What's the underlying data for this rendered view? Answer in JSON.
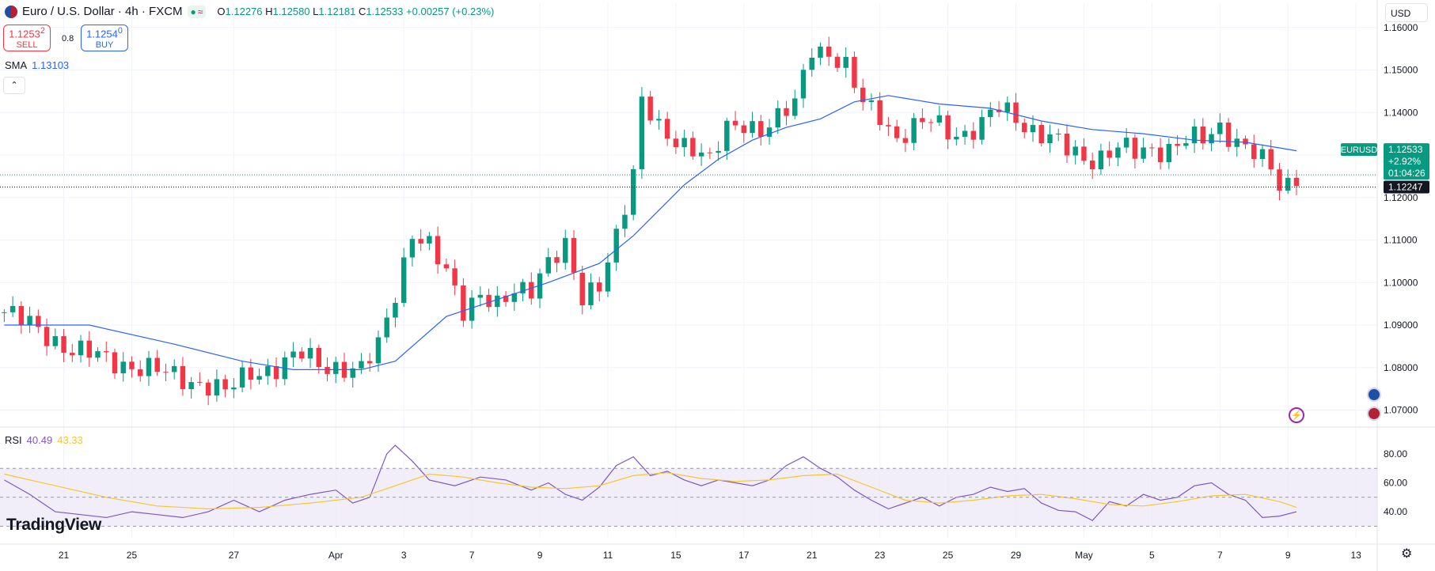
{
  "header": {
    "title": "Euro / U.S. Dollar · 4h · FXCM",
    "open_label": "O",
    "open": "1.12276",
    "high_label": "H",
    "high": "1.12580",
    "low_label": "L",
    "low": "1.12181",
    "close_label": "C",
    "close": "1.12533",
    "change": "+0.00257 (+0.23%)"
  },
  "trade": {
    "sell_price": "1.1253",
    "sell_sup": "2",
    "sell_label": "SELL",
    "buy_price": "1.1254",
    "buy_sup": "0",
    "buy_label": "BUY",
    "spread": "0.8"
  },
  "sma": {
    "label": "SMA",
    "value": "1.13103"
  },
  "rsi": {
    "label": "RSI",
    "value": "40.49",
    "ma_value": "43.33"
  },
  "currency": "USD",
  "logo": "TradingView",
  "price_tag": {
    "symbol": "EURUSD",
    "price": "1.12533",
    "change": "+2.92%",
    "countdown": "01:04:26",
    "crosshair_price": "1.12247"
  },
  "colors": {
    "up": "#089981",
    "down": "#f23645",
    "sma": "#2962ff",
    "rsi": "#7e57c2",
    "rsi_ma": "#f7c62f",
    "band": "#ede7f6"
  },
  "icons": [
    "flag-icon",
    "chevron-up-icon",
    "flash-icon",
    "eu-event-icon",
    "us-event-icon",
    "gear-icon"
  ],
  "chart_data": {
    "type": "candlestick",
    "price_ticks": [
      "1.16000",
      "1.15000",
      "1.14000",
      "1.13000",
      "1.12000",
      "1.11000",
      "1.10000",
      "1.09000",
      "1.08000",
      "1.07000"
    ],
    "ylim": [
      1.066,
      1.162
    ],
    "x_ticks": [
      {
        "label": "21",
        "at": 7
      },
      {
        "label": "25",
        "at": 15
      },
      {
        "label": "27",
        "at": 27
      },
      {
        "label": "Apr",
        "at": 39
      },
      {
        "label": "3",
        "at": 47
      },
      {
        "label": "7",
        "at": 55
      },
      {
        "label": "9",
        "at": 63
      },
      {
        "label": "11",
        "at": 71
      },
      {
        "label": "15",
        "at": 79
      },
      {
        "label": "17",
        "at": 87
      },
      {
        "label": "21",
        "at": 95
      },
      {
        "label": "23",
        "at": 103
      },
      {
        "label": "25",
        "at": 111
      },
      {
        "label": "29",
        "at": 119
      },
      {
        "label": "May",
        "at": 127
      },
      {
        "label": "5",
        "at": 135
      },
      {
        "label": "7",
        "at": 143
      },
      {
        "label": "9",
        "at": 151
      },
      {
        "label": "13",
        "at": 159
      }
    ],
    "n_slots": 162,
    "close_path": [
      [
        0,
        1.093
      ],
      [
        4,
        1.089
      ],
      [
        8,
        1.084
      ],
      [
        12,
        1.082
      ],
      [
        16,
        1.08
      ],
      [
        20,
        1.078
      ],
      [
        24,
        1.076
      ],
      [
        26,
        1.074
      ],
      [
        29,
        1.079
      ],
      [
        32,
        1.08
      ],
      [
        35,
        1.083
      ],
      [
        37,
        1.081
      ],
      [
        40,
        1.08
      ],
      [
        42,
        1.079
      ],
      [
        44,
        1.085
      ],
      [
        46,
        1.098
      ],
      [
        48,
        1.112
      ],
      [
        50,
        1.108
      ],
      [
        52,
        1.102
      ],
      [
        54,
        1.094
      ],
      [
        56,
        1.098
      ],
      [
        58,
        1.094
      ],
      [
        60,
        1.097
      ],
      [
        62,
        1.099
      ],
      [
        64,
        1.106
      ],
      [
        66,
        1.108
      ],
      [
        68,
        1.095
      ],
      [
        70,
        1.1
      ],
      [
        72,
        1.112
      ],
      [
        74,
        1.125
      ],
      [
        75,
        1.142
      ],
      [
        77,
        1.136
      ],
      [
        79,
        1.134
      ],
      [
        81,
        1.132
      ],
      [
        83,
        1.128
      ],
      [
        85,
        1.136
      ],
      [
        87,
        1.138
      ],
      [
        89,
        1.136
      ],
      [
        91,
        1.138
      ],
      [
        93,
        1.142
      ],
      [
        95,
        1.156
      ],
      [
        97,
        1.154
      ],
      [
        99,
        1.15
      ],
      [
        101,
        1.142
      ],
      [
        103,
        1.14
      ],
      [
        105,
        1.134
      ],
      [
        107,
        1.136
      ],
      [
        109,
        1.138
      ],
      [
        111,
        1.136
      ],
      [
        113,
        1.135
      ],
      [
        115,
        1.137
      ],
      [
        117,
        1.141
      ],
      [
        119,
        1.139
      ],
      [
        121,
        1.136
      ],
      [
        123,
        1.134
      ],
      [
        125,
        1.131
      ],
      [
        127,
        1.129
      ],
      [
        129,
        1.13
      ],
      [
        131,
        1.132
      ],
      [
        133,
        1.13
      ],
      [
        135,
        1.131
      ],
      [
        137,
        1.132
      ],
      [
        139,
        1.134
      ],
      [
        141,
        1.133
      ],
      [
        143,
        1.136
      ],
      [
        145,
        1.134
      ],
      [
        147,
        1.131
      ],
      [
        149,
        1.126
      ],
      [
        150,
        1.122
      ],
      [
        151,
        1.1225
      ],
      [
        152,
        1.1253
      ]
    ],
    "sma": [
      [
        0,
        1.09
      ],
      [
        10,
        1.09
      ],
      [
        20,
        1.0855
      ],
      [
        28,
        1.0815
      ],
      [
        34,
        1.0795
      ],
      [
        42,
        1.0795
      ],
      [
        46,
        1.0815
      ],
      [
        52,
        1.092
      ],
      [
        58,
        1.096
      ],
      [
        64,
        1.1
      ],
      [
        70,
        1.1045
      ],
      [
        74,
        1.111
      ],
      [
        80,
        1.123
      ],
      [
        84,
        1.129
      ],
      [
        88,
        1.1335
      ],
      [
        92,
        1.1365
      ],
      [
        96,
        1.1385
      ],
      [
        100,
        1.1425
      ],
      [
        104,
        1.144
      ],
      [
        110,
        1.142
      ],
      [
        116,
        1.141
      ],
      [
        122,
        1.138
      ],
      [
        128,
        1.136
      ],
      [
        134,
        1.135
      ],
      [
        140,
        1.1335
      ],
      [
        146,
        1.133
      ],
      [
        152,
        1.131
      ]
    ],
    "rsi_ylim": [
      22,
      92
    ],
    "rsi_ticks": [
      "80.00",
      "60.00",
      "40.00"
    ],
    "rsi_band": [
      30,
      70
    ],
    "rsi_mid": 50,
    "rsi": [
      [
        0,
        62
      ],
      [
        3,
        52
      ],
      [
        6,
        40
      ],
      [
        9,
        38
      ],
      [
        12,
        36
      ],
      [
        15,
        40
      ],
      [
        18,
        38
      ],
      [
        21,
        36
      ],
      [
        24,
        40
      ],
      [
        27,
        48
      ],
      [
        30,
        40
      ],
      [
        33,
        48
      ],
      [
        36,
        52
      ],
      [
        39,
        55
      ],
      [
        41,
        46
      ],
      [
        43,
        50
      ],
      [
        45,
        80
      ],
      [
        46,
        86
      ],
      [
        48,
        75
      ],
      [
        50,
        62
      ],
      [
        53,
        58
      ],
      [
        56,
        64
      ],
      [
        59,
        62
      ],
      [
        62,
        55
      ],
      [
        64,
        60
      ],
      [
        66,
        52
      ],
      [
        68,
        48
      ],
      [
        70,
        57
      ],
      [
        72,
        72
      ],
      [
        74,
        78
      ],
      [
        76,
        65
      ],
      [
        78,
        68
      ],
      [
        80,
        62
      ],
      [
        82,
        58
      ],
      [
        84,
        62
      ],
      [
        86,
        60
      ],
      [
        88,
        58
      ],
      [
        90,
        62
      ],
      [
        92,
        72
      ],
      [
        94,
        78
      ],
      [
        96,
        70
      ],
      [
        98,
        64
      ],
      [
        100,
        55
      ],
      [
        102,
        48
      ],
      [
        104,
        42
      ],
      [
        106,
        46
      ],
      [
        108,
        50
      ],
      [
        110,
        44
      ],
      [
        112,
        50
      ],
      [
        114,
        52
      ],
      [
        116,
        57
      ],
      [
        118,
        54
      ],
      [
        120,
        56
      ],
      [
        122,
        46
      ],
      [
        124,
        41
      ],
      [
        126,
        40
      ],
      [
        128,
        34
      ],
      [
        130,
        47
      ],
      [
        132,
        44
      ],
      [
        134,
        52
      ],
      [
        136,
        48
      ],
      [
        138,
        50
      ],
      [
        140,
        58
      ],
      [
        142,
        60
      ],
      [
        144,
        52
      ],
      [
        146,
        48
      ],
      [
        148,
        36
      ],
      [
        150,
        37
      ],
      [
        152,
        40
      ]
    ],
    "rsi_ma": [
      [
        0,
        66
      ],
      [
        6,
        58
      ],
      [
        12,
        50
      ],
      [
        18,
        44
      ],
      [
        24,
        42
      ],
      [
        30,
        43
      ],
      [
        36,
        46
      ],
      [
        42,
        50
      ],
      [
        46,
        58
      ],
      [
        50,
        66
      ],
      [
        54,
        64
      ],
      [
        58,
        60
      ],
      [
        62,
        57
      ],
      [
        66,
        56
      ],
      [
        70,
        58
      ],
      [
        74,
        65
      ],
      [
        78,
        67
      ],
      [
        82,
        63
      ],
      [
        86,
        61
      ],
      [
        90,
        62
      ],
      [
        94,
        65
      ],
      [
        98,
        66
      ],
      [
        102,
        57
      ],
      [
        106,
        48
      ],
      [
        110,
        46
      ],
      [
        114,
        48
      ],
      [
        118,
        51
      ],
      [
        122,
        52
      ],
      [
        126,
        49
      ],
      [
        130,
        45
      ],
      [
        134,
        44
      ],
      [
        138,
        47
      ],
      [
        142,
        51
      ],
      [
        146,
        52
      ],
      [
        150,
        47
      ],
      [
        152,
        43
      ]
    ]
  }
}
